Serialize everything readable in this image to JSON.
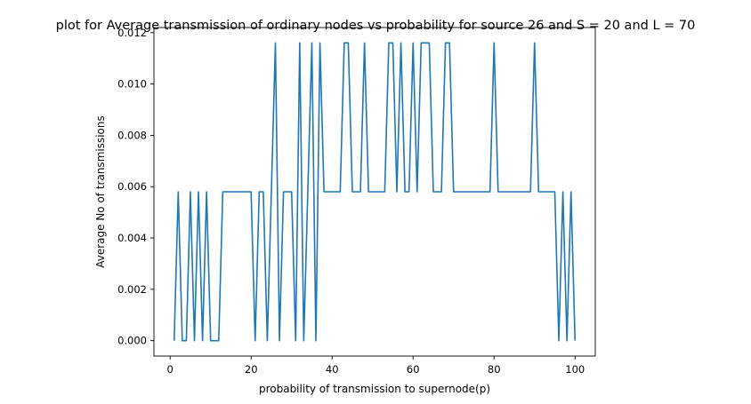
{
  "chart_data": {
    "type": "line",
    "title": "plot for Average transmission of ordinary nodes vs probability for source 26 and S = 20 and L = 70",
    "xlabel": "probability of transmission to supernode(p)",
    "ylabel": "Average No of transmissions",
    "xlim": [
      -4,
      105
    ],
    "ylim": [
      -0.0006,
      0.0122
    ],
    "xticks": [
      0,
      20,
      40,
      60,
      80,
      100
    ],
    "xtick_labels": [
      "0",
      "20",
      "40",
      "60",
      "80",
      "100"
    ],
    "yticks": [
      0.0,
      0.002,
      0.004,
      0.006,
      0.008,
      0.01,
      0.012
    ],
    "ytick_labels": [
      "0.000",
      "0.002",
      "0.004",
      "0.006",
      "0.008",
      "0.010",
      "0.012"
    ],
    "grid": false,
    "legend": "none",
    "series": [
      {
        "color": "#1f77b4",
        "x": [
          1,
          2,
          3,
          4,
          5,
          6,
          7,
          8,
          9,
          10,
          11,
          12,
          13,
          14,
          15,
          16,
          17,
          18,
          19,
          20,
          21,
          22,
          23,
          24,
          25,
          26,
          27,
          28,
          29,
          30,
          31,
          32,
          33,
          34,
          35,
          36,
          37,
          38,
          39,
          40,
          41,
          42,
          43,
          44,
          45,
          46,
          47,
          48,
          49,
          50,
          51,
          52,
          53,
          54,
          55,
          56,
          57,
          58,
          59,
          60,
          61,
          62,
          63,
          64,
          65,
          66,
          67,
          68,
          69,
          70,
          71,
          72,
          73,
          74,
          75,
          76,
          77,
          78,
          79,
          80,
          81,
          82,
          83,
          84,
          85,
          86,
          87,
          88,
          89,
          90,
          91,
          92,
          93,
          94,
          95,
          96,
          97,
          98,
          99,
          100
        ],
        "y": [
          0,
          0.0058,
          0,
          0,
          0.0058,
          0,
          0.0058,
          0,
          0.0058,
          0,
          0,
          0,
          0.0058,
          0.0058,
          0.0058,
          0.0058,
          0.0058,
          0.0058,
          0.0058,
          0.0058,
          0,
          0.0058,
          0.0058,
          0,
          0.0058,
          0.0116,
          0,
          0.0058,
          0.0058,
          0.0058,
          0,
          0.0116,
          0,
          0.0058,
          0.0116,
          0,
          0.0116,
          0.0058,
          0.0058,
          0.0058,
          0.0058,
          0.0058,
          0.0116,
          0.0116,
          0.0058,
          0.0058,
          0.0058,
          0.0116,
          0.0058,
          0.0058,
          0.0058,
          0.0058,
          0.0058,
          0.0116,
          0.0116,
          0.0058,
          0.0116,
          0.0058,
          0.0058,
          0.0116,
          0.0058,
          0.0116,
          0.0116,
          0.0116,
          0.0058,
          0.0058,
          0.0058,
          0.0116,
          0.0116,
          0.0058,
          0.0058,
          0.0058,
          0.0058,
          0.0058,
          0.0058,
          0.0058,
          0.0058,
          0.0058,
          0.0058,
          0.0116,
          0.0058,
          0.0058,
          0.0058,
          0.0058,
          0.0058,
          0.0058,
          0.0058,
          0.0058,
          0.0058,
          0.0116,
          0.0058,
          0.0058,
          0.0058,
          0.0058,
          0.0058,
          0,
          0.0058,
          0,
          0.0058,
          0
        ]
      }
    ]
  }
}
